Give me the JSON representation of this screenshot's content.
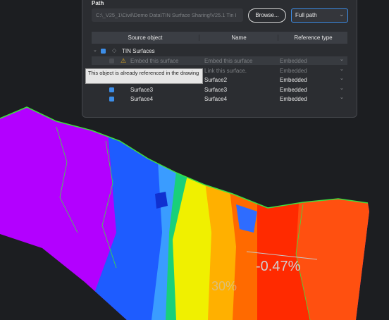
{
  "path": {
    "label": "Path",
    "value": "C:\\_V25_1\\Civil\\Demo Data\\TIN  Surface Sharing\\V25.1 Tin I",
    "browse": "Browse...",
    "mode": "Full path"
  },
  "table": {
    "headers": [
      "Source object",
      "Name",
      "Reference type"
    ],
    "group": "TIN Surfaces",
    "rows": [
      {
        "source": "Embed this surface",
        "name": "Embed this surface",
        "type": "Embedded"
      },
      {
        "name": "Link this surface.",
        "type": "Embedded"
      },
      {
        "name": "Surface2",
        "type": "Embedded"
      },
      {
        "source": "Surface3",
        "name": "Surface3",
        "type": "Embedded"
      },
      {
        "source": "Surface4",
        "name": "Surface4",
        "type": "Embedded"
      }
    ]
  },
  "tooltip": "This object is already referenced in the drawing",
  "map_labels": [
    "-0.47%",
    "30%"
  ]
}
